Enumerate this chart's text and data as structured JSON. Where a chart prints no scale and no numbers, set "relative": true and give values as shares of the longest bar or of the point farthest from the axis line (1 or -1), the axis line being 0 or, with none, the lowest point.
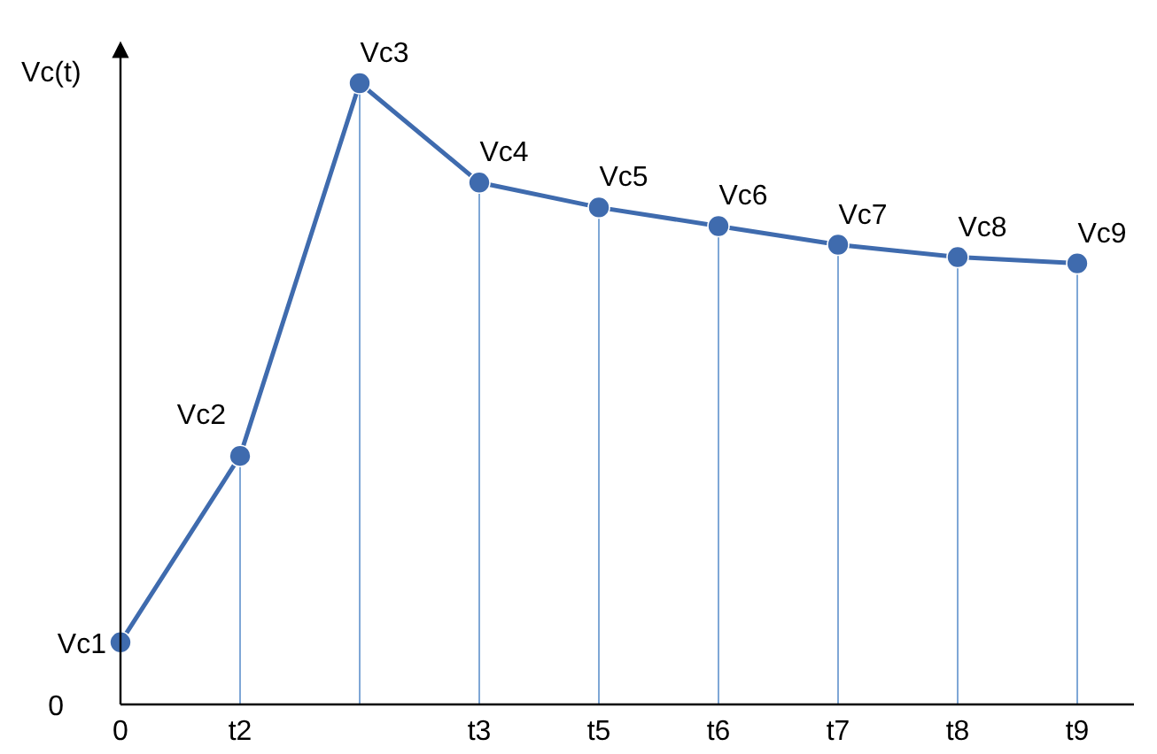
{
  "chart_data": {
    "type": "line",
    "relative": true,
    "ylabel": "Vc(t)",
    "categories": [
      "0",
      "t2",
      null,
      "t3",
      "t5",
      "t6",
      "t7",
      "t8",
      "t9"
    ],
    "series": [
      {
        "color": "#3f6bae",
        "values": [
          0.1,
          0.4,
          1,
          0.84,
          0.8,
          0.77,
          0.74,
          0.72,
          0.71
        ]
      }
    ],
    "marker": "circle",
    "line_style": "solid",
    "grid": "x",
    "annotations": [
      "0",
      "Vc1",
      "Vc2",
      "Vc3",
      "Vc4",
      "Vc5",
      "Vc6",
      "Vc7",
      "Vc8",
      "Vc9"
    ]
  }
}
